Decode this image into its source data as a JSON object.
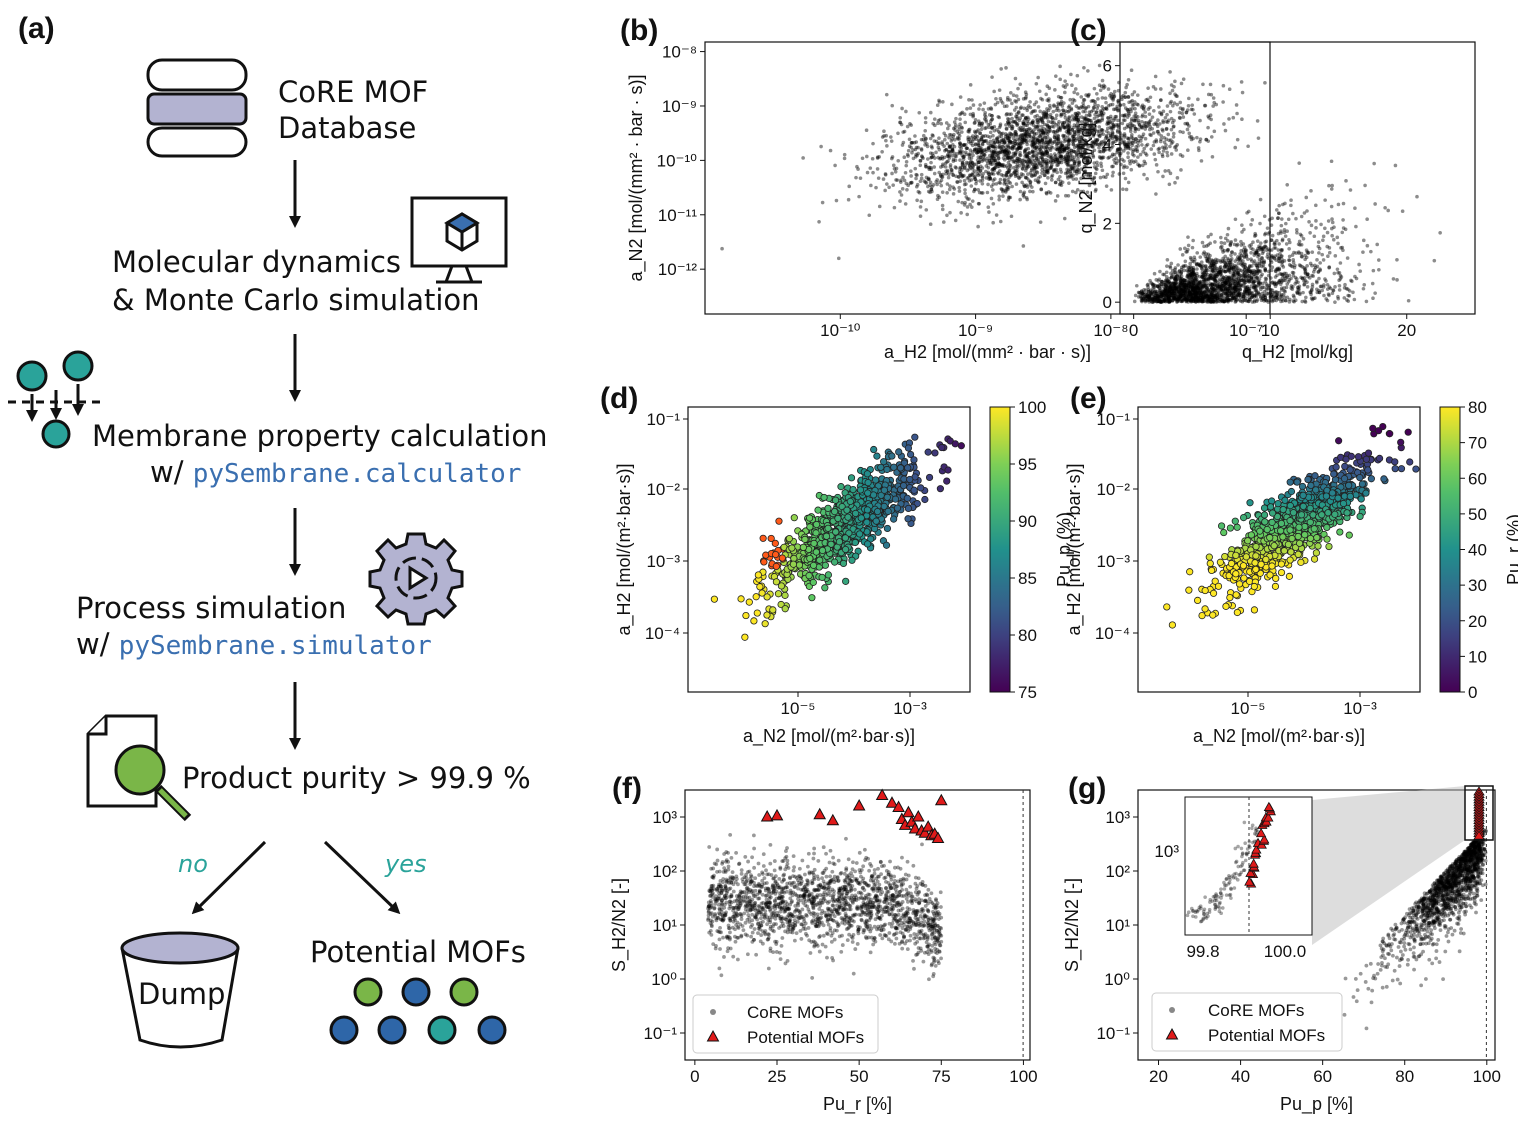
{
  "panel_labels": [
    "(a)",
    "(b)",
    "(c)",
    "(d)",
    "(e)",
    "(f)",
    "(g)"
  ],
  "flow": {
    "database": [
      "CoRE MOF",
      "Database"
    ],
    "simulation": [
      "Molecular dynamics",
      "& Monte Carlo simulation"
    ],
    "property": {
      "line1": "Membrane property calculation",
      "prefix": "w/ ",
      "code": "pySembrane.calculator"
    },
    "process": {
      "line1": "Process simulation",
      "prefix": "w/ ",
      "code": "pySembrane.simulator"
    },
    "purity": "Product purity > 99.9 %",
    "no": "no",
    "yes": "yes",
    "dump": "Dump",
    "potential": "Potential MOFs"
  },
  "colors": {
    "accent_teal": "#2aa39a",
    "code_blue": "#3a6fb0",
    "marker_red": "#e01a1a",
    "db_band": "#b3b3d1",
    "green_circle": "#7ab648",
    "blue_circle": "#2e66a8"
  },
  "chart_data": [
    {
      "panel": "(b)",
      "type": "scatter",
      "xlabel": "a_H2 [mol/(mm² · bar · s)]",
      "ylabel": "a_N2 [mol/(mm² · bar · s)]",
      "xscale": "log",
      "yscale": "log",
      "xlim": [
        1e-11,
        1.5e-07
      ],
      "ylim": [
        1.5e-13,
        1.5e-08
      ],
      "xticks": [
        "10⁻¹⁰",
        "10⁻⁹",
        "10⁻⁸",
        "10⁻⁷"
      ],
      "yticks": [
        "10⁻⁸",
        "10⁻⁹",
        "10⁻¹⁰",
        "10⁻¹¹",
        "10⁻¹²"
      ],
      "cloud_center": [
        3e-09,
        2e-10
      ],
      "color": "#000000"
    },
    {
      "panel": "(c)",
      "type": "scatter",
      "xlabel": "q_H2 [mol/kg]",
      "ylabel": "q_N2 [mol/kg]",
      "xlim": [
        -1,
        25
      ],
      "ylim": [
        -0.3,
        6.6
      ],
      "xticks": [
        "0",
        "10",
        "20"
      ],
      "yticks": [
        "0",
        "2",
        "4",
        "6"
      ],
      "color": "#000000"
    },
    {
      "panel": "(d)",
      "type": "scatter",
      "xlabel": "a_N2 [mol/(m²·bar·s)]",
      "ylabel": "a_H2 [mol/(m²·bar·s)]",
      "xscale": "log",
      "yscale": "log",
      "xticks": [
        "10⁻⁵",
        "10⁻³"
      ],
      "yticks": [
        "10⁻¹",
        "10⁻²",
        "10⁻³",
        "10⁻⁴"
      ],
      "colorbar": {
        "label": "Pu_p (%)",
        "min": 75,
        "max": 100,
        "ticks": [
          "100",
          "95",
          "90",
          "85",
          "80",
          "75"
        ]
      }
    },
    {
      "panel": "(e)",
      "type": "scatter",
      "xlabel": "a_N2 [mol/(m²·bar·s)]",
      "ylabel": "a_H2 [mol/(m²·bar·s)]",
      "xscale": "log",
      "yscale": "log",
      "xticks": [
        "10⁻⁵",
        "10⁻³"
      ],
      "yticks": [
        "10⁻¹",
        "10⁻²",
        "10⁻³",
        "10⁻⁴"
      ],
      "colorbar": {
        "label": "Pu_r (%)",
        "min": 0,
        "max": 80,
        "ticks": [
          "80",
          "70",
          "60",
          "50",
          "40",
          "30",
          "20",
          "10",
          "0"
        ]
      }
    },
    {
      "panel": "(f)",
      "type": "scatter",
      "xlabel": "Pu_r [%]",
      "ylabel": "S_H2/N2 [-]",
      "yscale": "log",
      "xlim": [
        -3,
        102
      ],
      "xticks": [
        "0",
        "25",
        "50",
        "75",
        "100"
      ],
      "yticks": [
        "10³",
        "10²",
        "10¹",
        "10⁰",
        "10⁻¹"
      ],
      "vline": 99.9,
      "legend": [
        "CoRE MOFs",
        "Potential MOFs"
      ],
      "legend_loc": "lower left",
      "potential_points": [
        [
          22,
          1000
        ],
        [
          25,
          1050
        ],
        [
          38,
          1100
        ],
        [
          42,
          850
        ],
        [
          50,
          1600
        ],
        [
          57,
          2500
        ],
        [
          60,
          1800
        ],
        [
          62,
          1500
        ],
        [
          63,
          900
        ],
        [
          64,
          700
        ],
        [
          65,
          1200
        ],
        [
          66,
          800
        ],
        [
          67,
          600
        ],
        [
          68,
          1000
        ],
        [
          69,
          550
        ],
        [
          70,
          500
        ],
        [
          71,
          650
        ],
        [
          72,
          450
        ],
        [
          73,
          480
        ],
        [
          74,
          400
        ],
        [
          75,
          2000
        ]
      ]
    },
    {
      "panel": "(g)",
      "type": "scatter",
      "xlabel": "Pu_p [%]",
      "ylabel": "S_H2/N2 [-]",
      "yscale": "log",
      "xlim": [
        15,
        102
      ],
      "xticks": [
        "20",
        "40",
        "60",
        "80",
        "100"
      ],
      "yticks": [
        "10³",
        "10²",
        "10¹",
        "10⁰",
        "10⁻¹"
      ],
      "vline": 99.9,
      "legend": [
        "CoRE MOFs",
        "Potential MOFs"
      ],
      "legend_loc": "lower left",
      "inset": {
        "xticks": [
          "99.8",
          "100.0"
        ],
        "ytick": "10³"
      }
    }
  ]
}
